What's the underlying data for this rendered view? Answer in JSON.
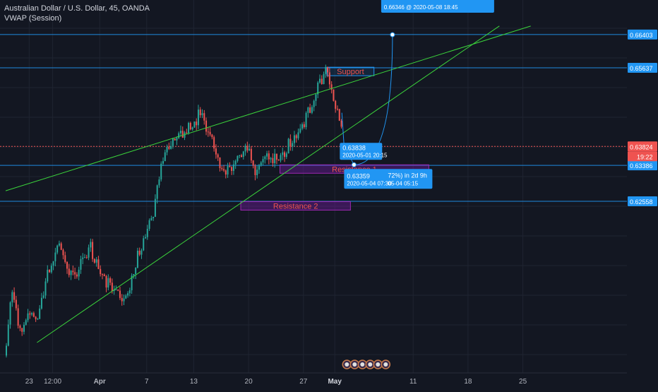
{
  "header": {
    "title": "Australian Dollar / U.S. Dollar, 45, OANDA",
    "indicator": "VWAP (Session)"
  },
  "colors": {
    "background": "#131722",
    "grid": "#1f2431",
    "up": "#26a69a",
    "down": "#ef5350",
    "trendline": "#3bd43b",
    "hline": "#2196f3",
    "zone_fill": "#6a1b9a",
    "zone_border": "#9c27b0",
    "callout": "#2196f3",
    "current_price": "#ef5350",
    "vwap": "#2962ff"
  },
  "chart_data": {
    "type": "candlestick",
    "symbol": "Australian Dollar / U.S. Dollar",
    "interval": "45",
    "source": "OANDA",
    "x_tick_labels": [
      "23",
      "12:00",
      "Apr",
      "7",
      "13",
      "20",
      "27",
      "May",
      "11",
      "18",
      "25"
    ],
    "y_tick_labels": [
      "0.66403",
      "0.65637",
      "0.63824",
      "0.63386",
      "0.62558"
    ],
    "current_price": 0.63824,
    "countdown": "19:22",
    "price_lines": [
      0.66403,
      0.65637,
      0.63386,
      0.62558
    ],
    "price_path": [
      [
        "Mar 20",
        0.59
      ],
      [
        "Mar 21",
        0.605
      ],
      [
        "Mar 22",
        0.595
      ],
      [
        "Mar 23",
        0.6
      ],
      [
        "Mar 24",
        0.598
      ],
      [
        "Mar 25",
        0.605
      ],
      [
        "Mar 26",
        0.612
      ],
      [
        "Mar 27",
        0.617
      ],
      [
        "Mar 28",
        0.61
      ],
      [
        "Mar 29",
        0.608
      ],
      [
        "Mar 30",
        0.612
      ],
      [
        "Mar 31",
        0.615
      ],
      [
        "Apr 1",
        0.61
      ],
      [
        "Apr 2",
        0.607
      ],
      [
        "Apr 3",
        0.605
      ],
      [
        "Apr 4",
        0.603
      ],
      [
        "Apr 5",
        0.606
      ],
      [
        "Apr 6",
        0.613
      ],
      [
        "Apr 7",
        0.618
      ],
      [
        "Apr 8",
        0.622
      ],
      [
        "Apr 9",
        0.635
      ],
      [
        "Apr 10",
        0.638
      ],
      [
        "Apr 11",
        0.64
      ],
      [
        "Apr 12",
        0.642
      ],
      [
        "Apr 13",
        0.643
      ],
      [
        "Apr 14",
        0.646
      ],
      [
        "Apr 15",
        0.642
      ],
      [
        "Apr 16",
        0.636
      ],
      [
        "Apr 17",
        0.633
      ],
      [
        "Apr 18",
        0.634
      ],
      [
        "Apr 19",
        0.636
      ],
      [
        "Apr 20",
        0.638
      ],
      [
        "Apr 21",
        0.633
      ],
      [
        "Apr 22",
        0.635
      ],
      [
        "Apr 23",
        0.636
      ],
      [
        "Apr 24",
        0.635
      ],
      [
        "Apr 25",
        0.638
      ],
      [
        "Apr 26",
        0.64
      ],
      [
        "Apr 27",
        0.643
      ],
      [
        "Apr 28",
        0.647
      ],
      [
        "Apr 29",
        0.652
      ],
      [
        "Apr 30",
        0.656
      ],
      [
        "May 1",
        0.65
      ],
      [
        "May 2",
        0.642
      ]
    ],
    "trendlines": [
      {
        "name": "upper",
        "from": [
          "Mar 20",
          0.628
        ],
        "to": [
          "May 26",
          0.666
        ]
      },
      {
        "name": "lower",
        "from": [
          "Mar 24",
          0.593
        ],
        "to": [
          "May 22",
          0.666
        ]
      }
    ],
    "zones": [
      {
        "label": "Support",
        "from": "Apr 30",
        "to": "May 6",
        "high": 0.6565,
        "low": 0.656
      },
      {
        "label": "Resistance 1",
        "from": "Apr 24",
        "to": "May 13",
        "high": 0.634,
        "low": 0.6328
      },
      {
        "label": "Resistance 2",
        "from": "Apr 19",
        "to": "May 3",
        "high": 0.6255,
        "low": 0.6245
      }
    ],
    "callouts": [
      {
        "price_text": "0.63838",
        "date_text": "2020-05-01 20:15"
      },
      {
        "price_text": "0.63359",
        "date_text": "2020-05-04 07:30",
        "extra": "72%) in 2d 9h",
        "extra_date": "05-04 05:15"
      },
      {
        "price_text": "0.66346 @ 2020-05-08 18:45"
      }
    ],
    "y_range": [
      0.586,
      0.672
    ]
  }
}
